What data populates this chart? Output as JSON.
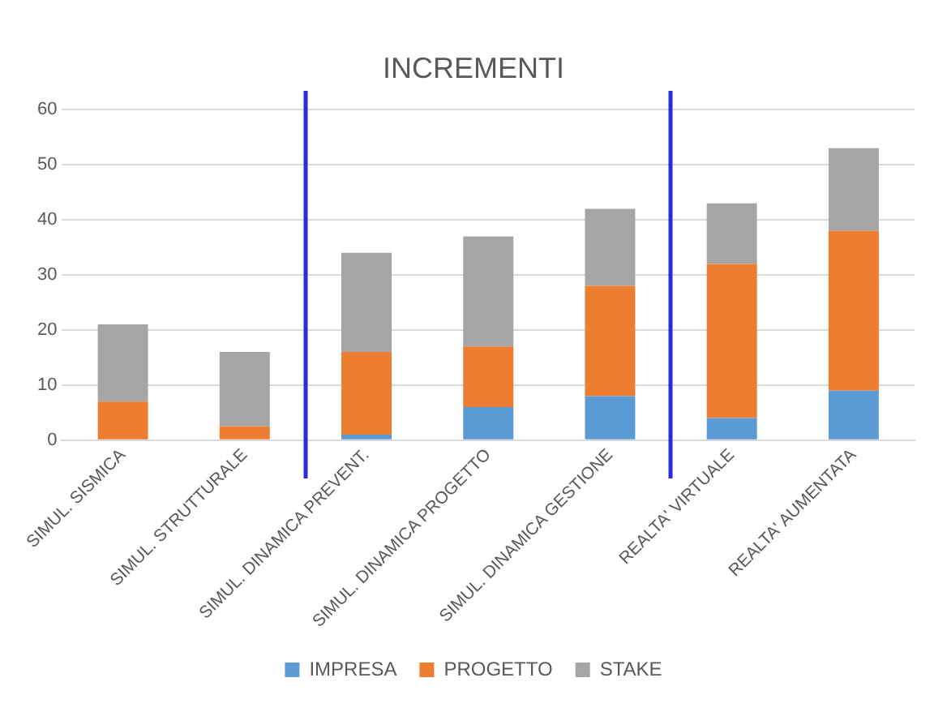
{
  "chart_data": {
    "type": "bar",
    "title": "INCREMENTI",
    "categories": [
      "SIMUL. SISMICA",
      "SIMUL. STRUTTURALE",
      "SIMUL. DINAMICA PREVENT.",
      "SIMUL. DINAMICA PROGETTO",
      "SIMUL. DINAMICA GESTIONE",
      "REALTA' VIRTUALE",
      "REALTA' AUMENTATA"
    ],
    "series": [
      {
        "name": "IMPRESA",
        "color": "#5b9bd5",
        "values": [
          0,
          0,
          1,
          6,
          8,
          4,
          9
        ]
      },
      {
        "name": "PROGETTO",
        "color": "#ed7d31",
        "values": [
          7,
          2.5,
          15,
          11,
          20,
          28,
          29
        ]
      },
      {
        "name": "STAKE",
        "color": "#a5a5a5",
        "values": [
          14,
          13.5,
          18,
          20,
          14,
          11,
          15
        ]
      }
    ],
    "stacked": true,
    "ylim": [
      0,
      60
    ],
    "yticks": [
      0,
      10,
      20,
      30,
      40,
      50,
      60
    ],
    "grid": "y",
    "legend": "bottom"
  }
}
